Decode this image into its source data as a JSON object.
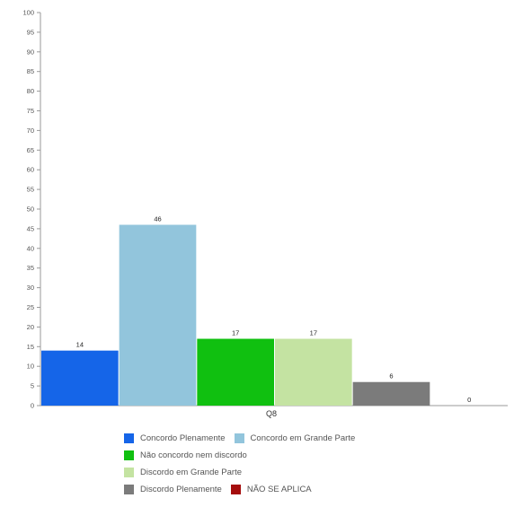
{
  "chart_data": {
    "type": "bar",
    "title": "",
    "categories": [
      "Q8"
    ],
    "series": [
      {
        "name": "Concordo Plenamente",
        "values": [
          14
        ],
        "color": "#1565e8"
      },
      {
        "name": "Concordo em Grande Parte",
        "values": [
          46
        ],
        "color": "#92c5dc"
      },
      {
        "name": "Não concordo nem discordo",
        "values": [
          17
        ],
        "color": "#10c010"
      },
      {
        "name": "Discordo em Grande Parte",
        "values": [
          17
        ],
        "color": "#c4e3a2"
      },
      {
        "name": "Discordo Plenamente",
        "values": [
          6
        ],
        "color": "#7b7b7b"
      },
      {
        "name": "NÃO SE APLICA",
        "values": [
          0
        ],
        "color": "#a50d0d"
      }
    ],
    "ylim": [
      0,
      100
    ],
    "yticks": [
      0,
      5,
      10,
      15,
      20,
      25,
      30,
      35,
      40,
      45,
      50,
      55,
      60,
      65,
      70,
      75,
      80,
      85,
      90,
      95,
      100
    ],
    "xlabel": "",
    "ylabel": "",
    "grid": false,
    "legend_position": "bottom"
  }
}
